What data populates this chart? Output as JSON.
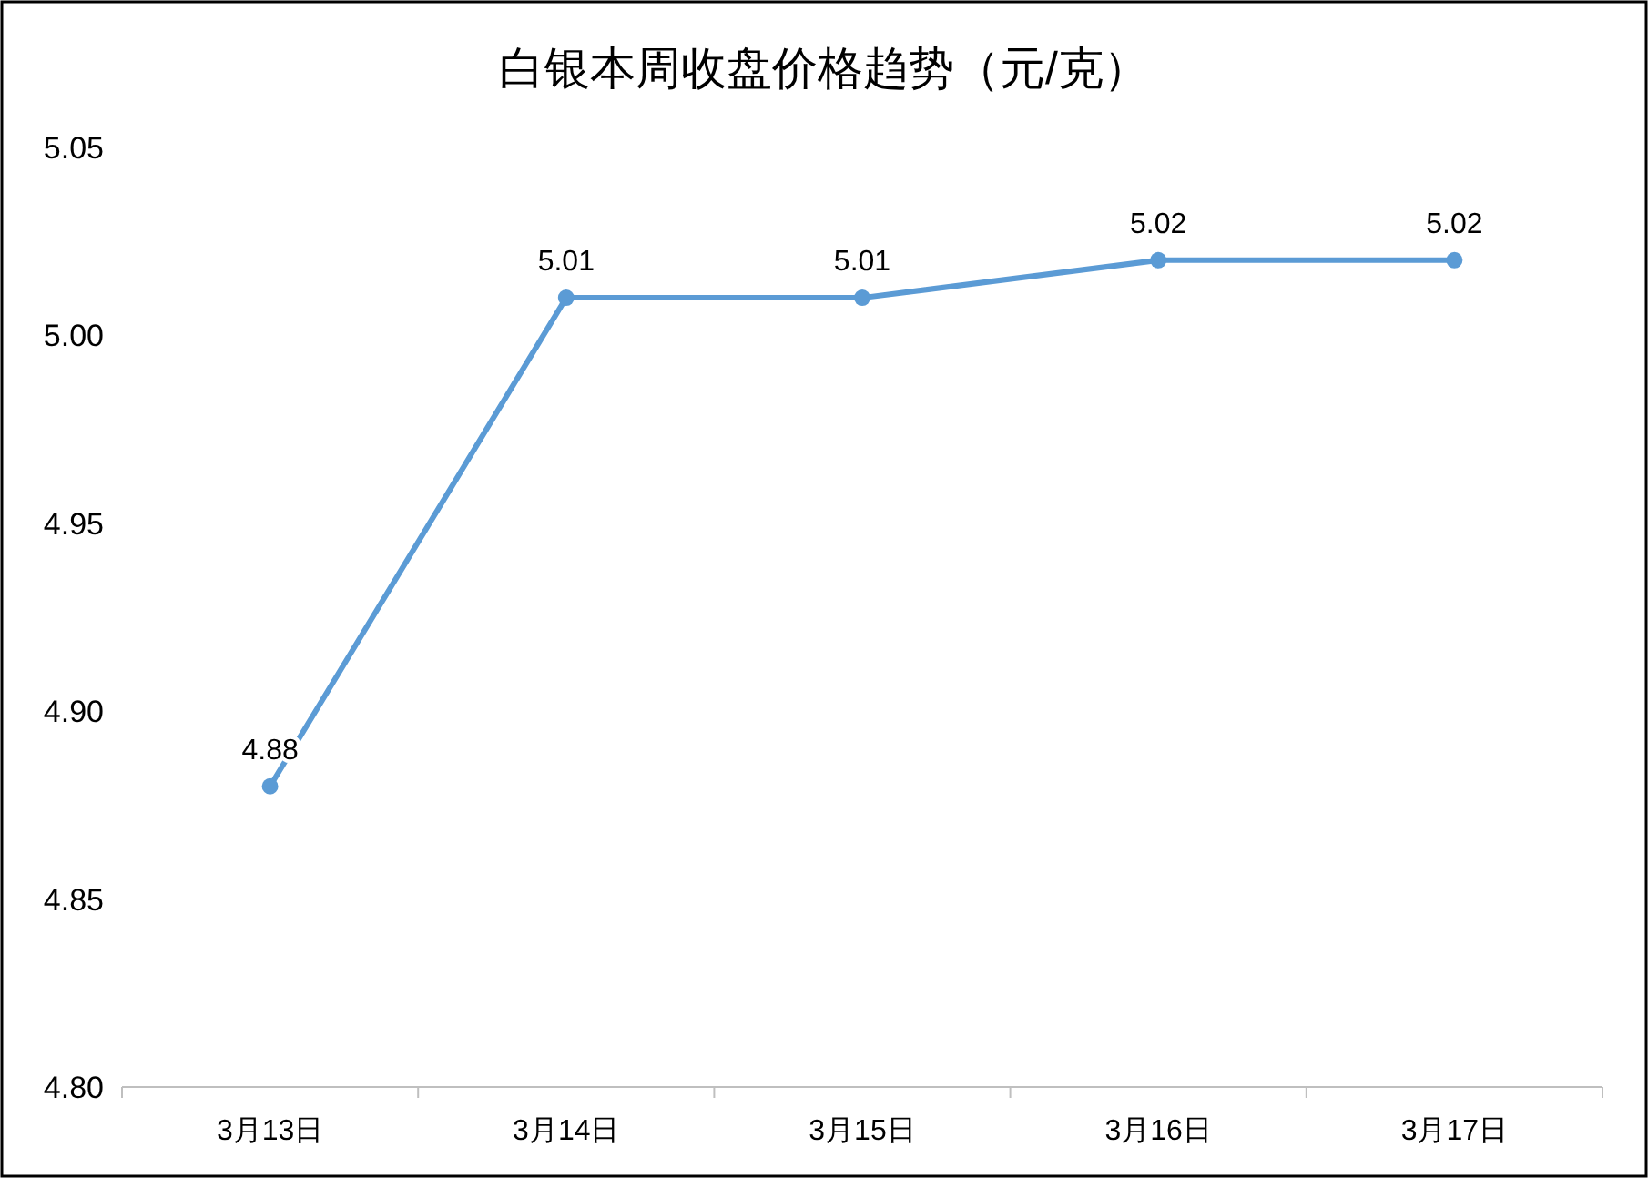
{
  "chart_data": {
    "type": "line",
    "title": "白银本周收盘价格趋势（元/克）",
    "categories": [
      "3月13日",
      "3月14日",
      "3月15日",
      "3月16日",
      "3月17日"
    ],
    "series": [
      {
        "color": "#5b9bd5",
        "values": [
          4.88,
          5.01,
          5.01,
          5.02,
          5.02
        ]
      }
    ],
    "ylim": [
      4.8,
      5.05
    ],
    "yticks": [
      {
        "value": 4.8,
        "label": "4.80"
      },
      {
        "value": 4.85,
        "label": "4.85"
      },
      {
        "value": 4.9,
        "label": "4.90"
      },
      {
        "value": 4.95,
        "label": "4.95"
      },
      {
        "value": 5.0,
        "label": "5.00"
      },
      {
        "value": 5.05,
        "label": "5.05"
      }
    ],
    "data_labels": true,
    "marker": "circle",
    "line_style": "solid",
    "grid": false
  }
}
